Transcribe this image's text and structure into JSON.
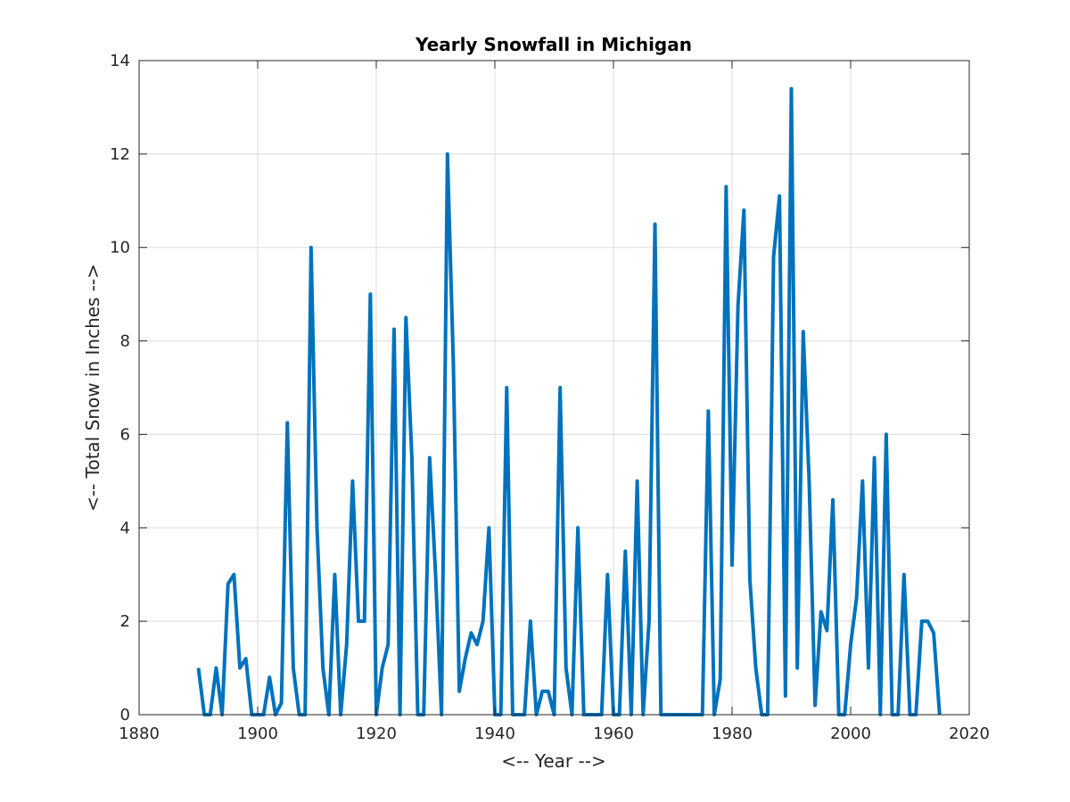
{
  "chart_data": {
    "type": "line",
    "title": "Yearly Snowfall in Michigan",
    "xlabel": "<-- Year -->",
    "ylabel": "<-- Total Snow in Inches -->",
    "xlim": [
      1880,
      2020
    ],
    "ylim": [
      0,
      14
    ],
    "xticks": [
      "1880",
      "1900",
      "1920",
      "1940",
      "1960",
      "1980",
      "2000",
      "2020"
    ],
    "yticks": [
      "0",
      "2",
      "4",
      "6",
      "8",
      "10",
      "12",
      "14"
    ],
    "grid": true,
    "legend": false,
    "series": [
      {
        "color": "#0072BD",
        "x": [
          1890,
          1891,
          1892,
          1893,
          1894,
          1895,
          1896,
          1897,
          1898,
          1899,
          1900,
          1901,
          1902,
          1903,
          1904,
          1905,
          1906,
          1907,
          1908,
          1909,
          1910,
          1911,
          1912,
          1913,
          1914,
          1915,
          1916,
          1917,
          1918,
          1919,
          1920,
          1921,
          1922,
          1923,
          1924,
          1925,
          1926,
          1927,
          1928,
          1929,
          1930,
          1931,
          1932,
          1933,
          1934,
          1935,
          1936,
          1937,
          1938,
          1939,
          1940,
          1941,
          1942,
          1943,
          1944,
          1945,
          1946,
          1947,
          1948,
          1949,
          1950,
          1951,
          1952,
          1953,
          1954,
          1955,
          1956,
          1957,
          1958,
          1959,
          1960,
          1961,
          1962,
          1963,
          1964,
          1965,
          1966,
          1967,
          1968,
          1969,
          1970,
          1971,
          1972,
          1973,
          1974,
          1975,
          1976,
          1977,
          1978,
          1979,
          1980,
          1981,
          1982,
          1983,
          1984,
          1985,
          1986,
          1987,
          1988,
          1989,
          1990,
          1991,
          1992,
          1993,
          1994,
          1995,
          1996,
          1997,
          1998,
          1999,
          2000,
          2001,
          2002,
          2003,
          2004,
          2005,
          2006,
          2007,
          2008,
          2009,
          2010,
          2011,
          2012,
          2013,
          2014,
          2015
        ],
        "y": [
          1.0,
          0,
          0,
          1.0,
          0,
          2.8,
          3.0,
          1.0,
          1.2,
          0,
          0,
          0,
          0.8,
          0,
          0.25,
          6.25,
          1.0,
          0,
          0,
          10.0,
          4.0,
          1.0,
          0,
          3.0,
          0,
          1.5,
          5.0,
          2.0,
          2.0,
          9.0,
          0,
          1.0,
          1.5,
          8.25,
          0,
          8.5,
          5.5,
          0,
          0,
          5.5,
          3.0,
          0,
          12.0,
          7.5,
          0.5,
          1.2,
          1.75,
          1.5,
          2.0,
          4.0,
          0,
          0,
          7.0,
          0,
          0,
          0,
          2.0,
          0,
          0.5,
          0.5,
          0,
          7.0,
          1.0,
          0,
          4.0,
          0,
          0,
          0,
          0,
          3.0,
          0,
          0,
          3.5,
          0,
          5.0,
          0,
          2.0,
          10.5,
          0,
          0,
          0,
          0,
          0,
          0,
          0,
          0,
          6.5,
          0,
          0.75,
          11.3,
          3.2,
          8.75,
          10.8,
          2.9,
          1.0,
          0,
          0,
          9.8,
          11.1,
          0.4,
          13.4,
          1.0,
          8.2,
          5.0,
          0.2,
          2.2,
          1.8,
          4.6,
          0,
          0,
          1.5,
          2.5,
          5.0,
          1.0,
          5.5,
          0,
          6.0,
          0,
          0,
          3.0,
          0,
          0,
          2.0,
          2.0,
          1.75,
          0
        ]
      }
    ]
  }
}
